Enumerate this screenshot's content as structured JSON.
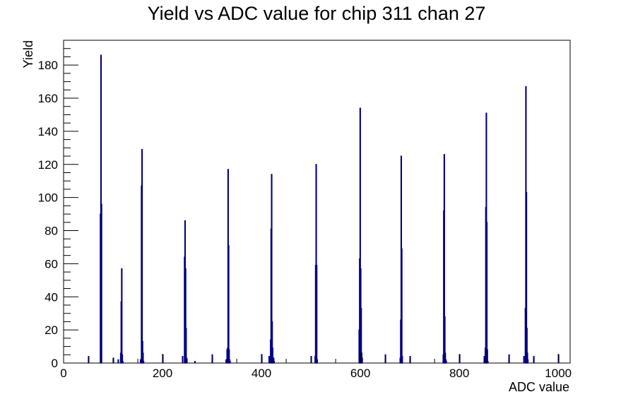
{
  "chart_data": {
    "type": "bar",
    "title": "Yield vs ADC value for chip 311 chan 27",
    "xlabel": "ADC value",
    "ylabel": "Yield",
    "xlim": [
      0,
      1024
    ],
    "ylim": [
      0,
      195
    ],
    "xticks": [
      0,
      200,
      400,
      600,
      800,
      1000
    ],
    "yticks": [
      0,
      20,
      40,
      60,
      80,
      100,
      120,
      140,
      160,
      180
    ],
    "grid": false,
    "legend": "none",
    "line_color": "#000080",
    "series": [
      {
        "x": [
          50,
          74,
          75,
          76,
          100,
          110,
          115,
          116,
          117,
          118,
          119,
          155,
          157,
          158,
          159,
          160,
          161,
          200,
          240,
          244,
          245,
          246,
          247,
          248,
          265,
          300,
          328,
          330,
          331,
          332,
          333,
          334,
          335,
          336,
          400,
          415,
          418,
          419,
          420,
          421,
          422,
          423,
          424,
          425,
          500,
          508,
          509,
          510,
          511,
          512,
          597,
          598,
          599,
          600,
          601,
          602,
          603,
          650,
          680,
          681,
          682,
          683,
          684,
          700,
          767,
          768,
          769,
          770,
          771,
          772,
          773,
          800,
          850,
          852,
          853,
          854,
          855,
          856,
          857,
          900,
          930,
          933,
          934,
          935,
          936,
          937,
          938,
          950,
          1000
        ],
        "y": [
          4,
          90,
          186,
          96,
          3,
          2,
          6,
          37,
          57,
          5,
          1,
          2,
          107,
          129,
          13,
          6,
          1,
          5,
          4,
          64,
          86,
          57,
          21,
          3,
          1,
          5,
          2,
          8,
          9,
          117,
          71,
          8,
          2,
          1,
          5,
          4,
          14,
          81,
          114,
          25,
          9,
          1,
          3,
          1,
          4,
          4,
          59,
          120,
          59,
          2,
          20,
          63,
          154,
          57,
          33,
          6,
          3,
          5,
          3,
          26,
          125,
          69,
          4,
          4,
          5,
          92,
          126,
          28,
          6,
          2,
          1,
          5,
          4,
          9,
          94,
          151,
          85,
          8,
          1,
          5,
          4,
          33,
          167,
          103,
          21,
          6,
          2,
          4,
          5
        ]
      }
    ]
  }
}
